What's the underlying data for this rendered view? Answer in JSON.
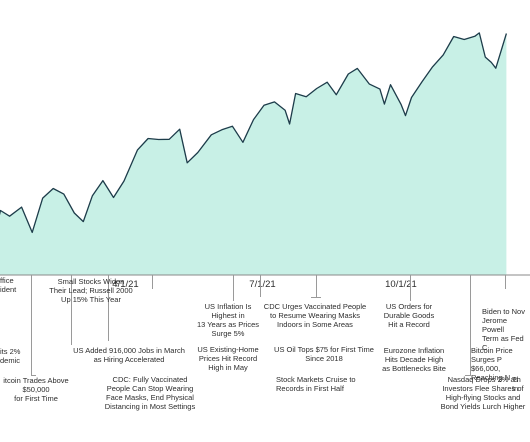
{
  "chart_data": {
    "type": "area",
    "colors": {
      "fill": "#c8f0e6",
      "line": "#1d3c4a",
      "baseline": "#8a8a8a",
      "leader": "#9a9a9a",
      "text": "#2d2d2d"
    },
    "x_domain": [
      "2021-01-01",
      "2021-12-31"
    ],
    "grid": false,
    "legend": "none",
    "y_axis_labels": false,
    "date_labels": [
      {
        "text": "4/1/21",
        "date": "2021-04-01"
      },
      {
        "text": "7/1/21",
        "date": "2021-07-01"
      },
      {
        "text": "10/1/21",
        "date": "2021-10-01"
      }
    ],
    "series": [
      {
        "values": [
          {
            "date": "2021-01-04",
            "value": 3700
          },
          {
            "date": "2021-01-08",
            "value": 3824
          },
          {
            "date": "2021-01-14",
            "value": 3795
          },
          {
            "date": "2021-01-22",
            "value": 3841
          },
          {
            "date": "2021-01-29",
            "value": 3714
          },
          {
            "date": "2021-02-05",
            "value": 3886
          },
          {
            "date": "2021-02-12",
            "value": 3934
          },
          {
            "date": "2021-02-19",
            "value": 3906
          },
          {
            "date": "2021-02-26",
            "value": 3811
          },
          {
            "date": "2021-03-04",
            "value": 3768
          },
          {
            "date": "2021-03-10",
            "value": 3898
          },
          {
            "date": "2021-03-17",
            "value": 3974
          },
          {
            "date": "2021-03-24",
            "value": 3889
          },
          {
            "date": "2021-03-31",
            "value": 3972
          },
          {
            "date": "2021-04-09",
            "value": 4128
          },
          {
            "date": "2021-04-16",
            "value": 4185
          },
          {
            "date": "2021-04-23",
            "value": 4180
          },
          {
            "date": "2021-04-30",
            "value": 4181
          },
          {
            "date": "2021-05-07",
            "value": 4232
          },
          {
            "date": "2021-05-12",
            "value": 4063
          },
          {
            "date": "2021-05-19",
            "value": 4115
          },
          {
            "date": "2021-05-28",
            "value": 4204
          },
          {
            "date": "2021-06-04",
            "value": 4229
          },
          {
            "date": "2021-06-11",
            "value": 4247
          },
          {
            "date": "2021-06-18",
            "value": 4166
          },
          {
            "date": "2021-06-25",
            "value": 4280
          },
          {
            "date": "2021-07-02",
            "value": 4352
          },
          {
            "date": "2021-07-09",
            "value": 4369
          },
          {
            "date": "2021-07-16",
            "value": 4327
          },
          {
            "date": "2021-07-19",
            "value": 4258
          },
          {
            "date": "2021-07-23",
            "value": 4411
          },
          {
            "date": "2021-07-30",
            "value": 4395
          },
          {
            "date": "2021-08-06",
            "value": 4436
          },
          {
            "date": "2021-08-13",
            "value": 4468
          },
          {
            "date": "2021-08-19",
            "value": 4405
          },
          {
            "date": "2021-08-27",
            "value": 4509
          },
          {
            "date": "2021-09-02",
            "value": 4537
          },
          {
            "date": "2021-09-10",
            "value": 4458
          },
          {
            "date": "2021-09-17",
            "value": 4433
          },
          {
            "date": "2021-09-20",
            "value": 4358
          },
          {
            "date": "2021-09-24",
            "value": 4455
          },
          {
            "date": "2021-10-01",
            "value": 4357
          },
          {
            "date": "2021-10-04",
            "value": 4300
          },
          {
            "date": "2021-10-08",
            "value": 4391
          },
          {
            "date": "2021-10-15",
            "value": 4471
          },
          {
            "date": "2021-10-22",
            "value": 4545
          },
          {
            "date": "2021-10-29",
            "value": 4605
          },
          {
            "date": "2021-11-05",
            "value": 4697
          },
          {
            "date": "2021-11-12",
            "value": 4682
          },
          {
            "date": "2021-11-19",
            "value": 4698
          },
          {
            "date": "2021-11-22",
            "value": 4715
          },
          {
            "date": "2021-11-26",
            "value": 4594
          },
          {
            "date": "2021-11-30",
            "value": 4567
          },
          {
            "date": "2021-12-03",
            "value": 4538
          },
          {
            "date": "2021-12-10",
            "value": 4712
          }
        ]
      }
    ],
    "y_domain": [
      3500,
      4780
    ]
  },
  "annotations": [
    {
      "name": "annotation-office",
      "text": "ffice\nident"
    },
    {
      "name": "annotation-pandemic",
      "text": "its 2%\ndemic"
    },
    {
      "name": "annotation-bitcoin-50000",
      "text": "itcoin Trades Above $50,000\nfor First Time"
    },
    {
      "name": "annotation-small-stocks",
      "text": "Small Stocks Widen\nTheir Lead; Russell 2000\nUp 15% This Year"
    },
    {
      "name": "annotation-jobs-march",
      "text": "US Added 916,000 Jobs in March\nas Hiring Accelerated"
    },
    {
      "name": "annotation-cdc-masks",
      "text": "CDC: Fully Vaccinated\nPeople Can Stop Wearing\nFace Masks, End Physical\nDistancing in Most Settings"
    },
    {
      "name": "annotation-inflation-13-years",
      "text": "US Inflation Is\nHighest in\n13 Years as Prices\nSurge 5%"
    },
    {
      "name": "annotation-existing-home",
      "text": "US Existing-Home\nPrices Hit Record\nHigh in May"
    },
    {
      "name": "annotation-cdc-indoor-masks",
      "text": "CDC Urges Vaccinated People\nto Resume Wearing Masks\nIndoors in Some Areas"
    },
    {
      "name": "annotation-oil-75",
      "text": "US Oil Tops $75 for First Time\nSince 2018"
    },
    {
      "name": "annotation-records-first-half",
      "text": "Stock Markets Cruise to\nRecords in First Half"
    },
    {
      "name": "annotation-durable-goods",
      "text": "US Orders for\nDurable Goods\nHit a Record"
    },
    {
      "name": "annotation-eurozone-inflation",
      "text": "Eurozone Inflation\nHits Decade High\nas Bottlenecks Bite"
    },
    {
      "name": "annotation-nasdaq-drops",
      "text": "Nasdaq Drops 2% as\nInvestors Flee Shares of\nHigh-flying Stocks and\nBond Yields Lurch Higher"
    },
    {
      "name": "annotation-biden-powell",
      "text": "Biden to Nov\nJerome Powell\nTerm as Fed C"
    },
    {
      "name": "annotation-bitcoin-66000",
      "text": "Bitcoin Price Surges P\n$66,000, Reaching N"
    },
    {
      "name": "annotation-fragment",
      "text": "Th\nIn"
    }
  ]
}
